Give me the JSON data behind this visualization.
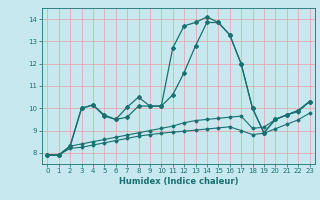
{
  "xlabel": "Humidex (Indice chaleur)",
  "xlim": [
    -0.5,
    23.5
  ],
  "ylim": [
    7.5,
    14.5
  ],
  "background_color": "#c8e8f0",
  "grid_color": "#e8a0a0",
  "line_color": "#1a7070",
  "line1_x": [
    0,
    1,
    2,
    3,
    4,
    5,
    6,
    7,
    8,
    9,
    10,
    11,
    12,
    13,
    14,
    15,
    16,
    17,
    18,
    19,
    20,
    21,
    22,
    23
  ],
  "line1_y": [
    7.9,
    7.9,
    8.3,
    10.0,
    10.15,
    9.65,
    9.5,
    9.6,
    10.1,
    10.1,
    10.1,
    10.6,
    11.6,
    12.8,
    13.85,
    13.85,
    13.3,
    12.0,
    10.0,
    8.9,
    9.5,
    9.7,
    9.9,
    10.3
  ],
  "line2_x": [
    0,
    1,
    2,
    3,
    4,
    5,
    6,
    7,
    8,
    9,
    10,
    11,
    12,
    13,
    14,
    15,
    16,
    17,
    18,
    19,
    20,
    21,
    22,
    23
  ],
  "line2_y": [
    7.9,
    7.9,
    8.3,
    10.0,
    10.15,
    9.7,
    9.5,
    10.05,
    10.5,
    10.1,
    10.1,
    12.7,
    13.7,
    13.85,
    14.1,
    13.85,
    13.3,
    12.0,
    10.0,
    8.9,
    9.5,
    9.7,
    9.9,
    10.3
  ],
  "line3_x": [
    0,
    1,
    2,
    3,
    4,
    5,
    6,
    7,
    8,
    9,
    10,
    11,
    12,
    13,
    14,
    15,
    16,
    17,
    18,
    19,
    20,
    21,
    22,
    23
  ],
  "line3_y": [
    7.9,
    7.9,
    8.3,
    8.4,
    8.5,
    8.6,
    8.7,
    8.8,
    8.9,
    9.0,
    9.1,
    9.2,
    9.35,
    9.45,
    9.5,
    9.55,
    9.6,
    9.65,
    9.1,
    9.15,
    9.5,
    9.7,
    9.85,
    10.3
  ],
  "line4_x": [
    0,
    1,
    2,
    3,
    4,
    5,
    6,
    7,
    8,
    9,
    10,
    11,
    12,
    13,
    14,
    15,
    16,
    17,
    18,
    19,
    20,
    21,
    22,
    23
  ],
  "line4_y": [
    7.9,
    7.9,
    8.2,
    8.25,
    8.35,
    8.45,
    8.55,
    8.65,
    8.75,
    8.82,
    8.88,
    8.93,
    8.97,
    9.02,
    9.07,
    9.12,
    9.17,
    9.0,
    8.82,
    8.88,
    9.08,
    9.28,
    9.48,
    9.78
  ],
  "yticks": [
    8,
    9,
    10,
    11,
    12,
    13,
    14
  ],
  "xticks": [
    0,
    1,
    2,
    3,
    4,
    5,
    6,
    7,
    8,
    9,
    10,
    11,
    12,
    13,
    14,
    15,
    16,
    17,
    18,
    19,
    20,
    21,
    22,
    23
  ]
}
